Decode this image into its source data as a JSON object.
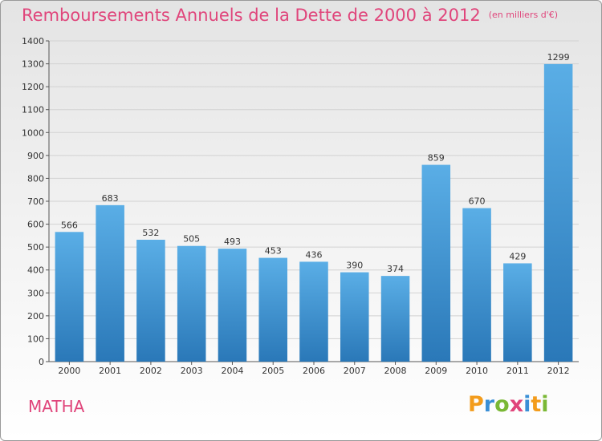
{
  "title": "Remboursements Annuels de la Dette de 2000 à 2012",
  "subtitle": "(en milliers d'€)",
  "commune": "MATHA",
  "logo": {
    "letters": [
      "P",
      "r",
      "o",
      "x",
      "i",
      "t",
      "i"
    ],
    "colors": [
      "#f39c1c",
      "#3a8fd6",
      "#7ab835",
      "#e0457b",
      "#3a8fd6",
      "#f39c1c",
      "#7ab835"
    ]
  },
  "colors": {
    "title": "#e0457b",
    "bar_top": "#5aaee6",
    "bar_bottom": "#2a78b8"
  },
  "chart_data": {
    "type": "bar",
    "categories": [
      "2000",
      "2001",
      "2002",
      "2003",
      "2004",
      "2005",
      "2006",
      "2007",
      "2008",
      "2009",
      "2010",
      "2011",
      "2012"
    ],
    "values": [
      566,
      683,
      532,
      505,
      493,
      453,
      436,
      390,
      374,
      859,
      670,
      429,
      1299
    ],
    "ylim": [
      0,
      1400
    ],
    "yticks": [
      0,
      100,
      200,
      300,
      400,
      500,
      600,
      700,
      800,
      900,
      1000,
      1100,
      1200,
      1300,
      1400
    ],
    "grid": true,
    "title": "Remboursements Annuels de la Dette de 2000 à 2012",
    "xlabel": "",
    "ylabel": ""
  }
}
